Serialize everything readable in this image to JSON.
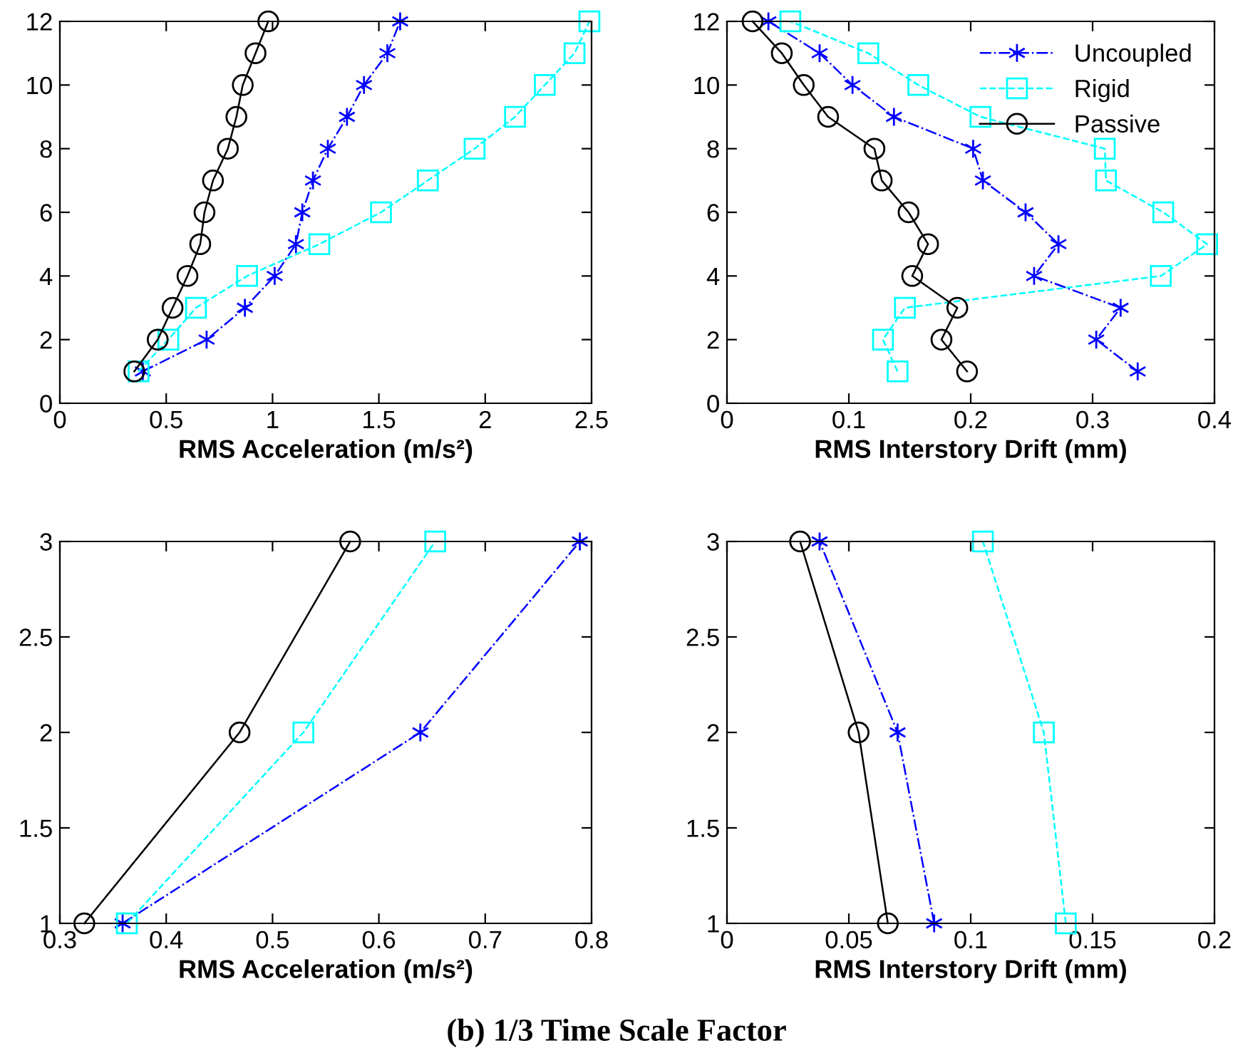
{
  "chart_data": [
    {
      "type": "line",
      "xlabel": "RMS Acceleration (m/s²)",
      "xlim": [
        0,
        2.5
      ],
      "xticks": [
        0,
        0.5,
        1,
        1.5,
        2,
        2.5
      ],
      "ylim": [
        0,
        12
      ],
      "yticks": [
        0,
        2,
        4,
        6,
        8,
        10,
        12
      ],
      "grid": false,
      "series": [
        {
          "color": "#0000ff",
          "marker": "cross",
          "line_style": "dashdot",
          "x": [
            0.39,
            0.69,
            0.87,
            1.01,
            1.11,
            1.14,
            1.19,
            1.26,
            1.35,
            1.43,
            1.54,
            1.6
          ],
          "values": [
            1,
            2,
            3,
            4,
            5,
            6,
            7,
            8,
            9,
            10,
            11,
            12
          ]
        },
        {
          "color": "#00ffff",
          "marker": "square",
          "line_style": "dashed",
          "x": [
            0.37,
            0.51,
            0.64,
            0.88,
            1.22,
            1.51,
            1.73,
            1.95,
            2.14,
            2.28,
            2.42,
            2.49
          ],
          "values": [
            1,
            2,
            3,
            4,
            5,
            6,
            7,
            8,
            9,
            10,
            11,
            12
          ]
        },
        {
          "color": "#000000",
          "marker": "circle",
          "line_style": "solid",
          "x": [
            0.35,
            0.46,
            0.53,
            0.6,
            0.66,
            0.68,
            0.72,
            0.79,
            0.83,
            0.86,
            0.92,
            0.98
          ],
          "values": [
            1,
            2,
            3,
            4,
            5,
            6,
            7,
            8,
            9,
            10,
            11,
            12
          ]
        }
      ]
    },
    {
      "type": "line",
      "xlabel": "RMS Interstory Drift (mm)",
      "xlim": [
        0,
        0.4
      ],
      "xticks": [
        0,
        0.1,
        0.2,
        0.3,
        0.4
      ],
      "ylim": [
        0,
        12
      ],
      "yticks": [
        0,
        2,
        4,
        6,
        8,
        10,
        12
      ],
      "grid": false,
      "legend": "top right",
      "series": [
        {
          "name": "Uncoupled",
          "color": "#0000ff",
          "marker": "cross",
          "line_style": "dashdot",
          "x": [
            0.337,
            0.303,
            0.323,
            0.252,
            0.272,
            0.245,
            0.21,
            0.202,
            0.137,
            0.103,
            0.076,
            0.034
          ],
          "values": [
            1,
            2,
            3,
            4,
            5,
            6,
            7,
            8,
            9,
            10,
            11,
            12
          ]
        },
        {
          "name": "Rigid",
          "color": "#00ffff",
          "marker": "square",
          "line_style": "dashed",
          "x": [
            0.14,
            0.128,
            0.146,
            0.356,
            0.394,
            0.358,
            0.311,
            0.31,
            0.208,
            0.157,
            0.116,
            0.052
          ],
          "values": [
            1,
            2,
            3,
            4,
            5,
            6,
            7,
            8,
            9,
            10,
            11,
            12
          ]
        },
        {
          "name": "Passive",
          "color": "#000000",
          "marker": "circle",
          "line_style": "solid",
          "x": [
            0.197,
            0.176,
            0.189,
            0.152,
            0.165,
            0.149,
            0.127,
            0.121,
            0.083,
            0.063,
            0.045,
            0.021
          ],
          "values": [
            1,
            2,
            3,
            4,
            5,
            6,
            7,
            8,
            9,
            10,
            11,
            12
          ]
        }
      ]
    },
    {
      "type": "line",
      "xlabel": "RMS Acceleration (m/s²)",
      "xlim": [
        0.3,
        0.8
      ],
      "xticks": [
        0.3,
        0.4,
        0.5,
        0.6,
        0.7,
        0.8
      ],
      "ylim": [
        1,
        3
      ],
      "yticks": [
        1,
        1.5,
        2,
        2.5,
        3
      ],
      "grid": false,
      "series": [
        {
          "color": "#0000ff",
          "marker": "cross",
          "line_style": "dashdot",
          "x": [
            0.359,
            0.639,
            0.789
          ],
          "values": [
            1,
            2,
            3
          ]
        },
        {
          "color": "#00ffff",
          "marker": "square",
          "line_style": "dashed",
          "x": [
            0.363,
            0.529,
            0.653
          ],
          "values": [
            1,
            2,
            3
          ]
        },
        {
          "color": "#000000",
          "marker": "circle",
          "line_style": "solid",
          "x": [
            0.323,
            0.469,
            0.573
          ],
          "values": [
            1,
            2,
            3
          ]
        }
      ]
    },
    {
      "type": "line",
      "xlabel": "RMS Interstory Drift (mm)",
      "xlim": [
        0,
        0.2
      ],
      "xticks": [
        0,
        0.05,
        0.1,
        0.15,
        0.2
      ],
      "ylim": [
        1,
        3
      ],
      "yticks": [
        1,
        1.5,
        2,
        2.5,
        3
      ],
      "grid": false,
      "annotations": [
        "(b) 1/3 Time Scale Factor"
      ],
      "series": [
        {
          "color": "#0000ff",
          "marker": "cross",
          "line_style": "dashdot",
          "x": [
            0.085,
            0.07,
            0.038
          ],
          "values": [
            1,
            2,
            3
          ]
        },
        {
          "color": "#00ffff",
          "marker": "square",
          "line_style": "dashed",
          "x": [
            0.139,
            0.13,
            0.105
          ],
          "values": [
            1,
            2,
            3
          ]
        },
        {
          "color": "#000000",
          "marker": "circle",
          "line_style": "solid",
          "x": [
            0.066,
            0.054,
            0.03
          ],
          "values": [
            1,
            2,
            3
          ]
        }
      ]
    }
  ]
}
